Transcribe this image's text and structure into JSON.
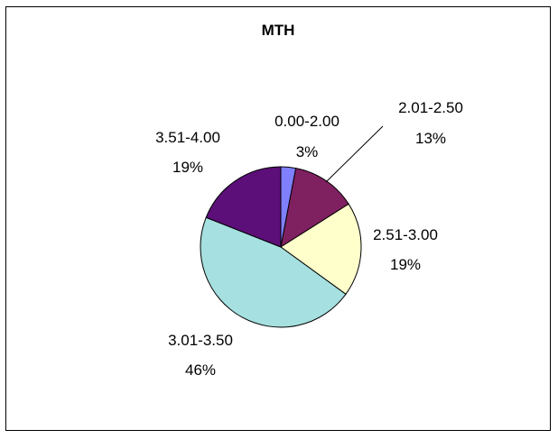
{
  "chart_data": {
    "type": "pie",
    "title": "MTH",
    "categories": [
      "0.00-2.00",
      "2.01-2.50",
      "2.51-3.00",
      "3.01-3.50",
      "3.51-4.00"
    ],
    "values": [
      3,
      13,
      19,
      46,
      19
    ],
    "labels": [
      "3%",
      "13%",
      "19%",
      "46%",
      "19%"
    ],
    "colors": [
      "#8080ff",
      "#7f2060",
      "#ffffcc",
      "#a6e0e0",
      "#5c0f78"
    ]
  }
}
